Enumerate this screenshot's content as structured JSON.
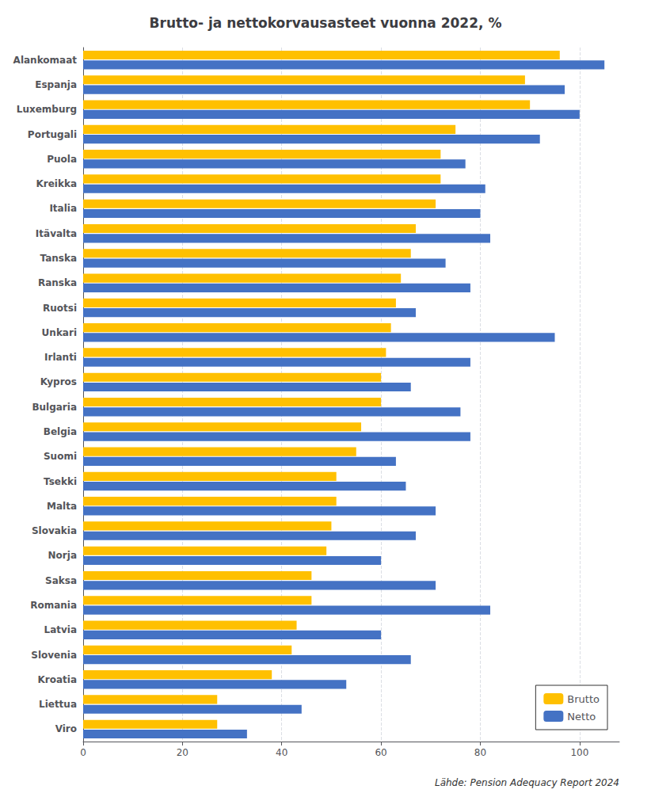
{
  "chart_data": {
    "type": "bar",
    "orientation": "horizontal",
    "title": "Brutto- ja nettokorvausasteet vuonna 2022, %",
    "categories": [
      "Alankomaat",
      "Espanja",
      "Luxemburg",
      "Portugali",
      "Puola",
      "Kreikka",
      "Italia",
      "Itävalta",
      "Tanska",
      "Ranska",
      "Ruotsi",
      "Unkari",
      "Irlanti",
      "Kypros",
      "Bulgaria",
      "Belgia",
      "Suomi",
      "Tsekki",
      "Malta",
      "Slovakia",
      "Norja",
      "Saksa",
      "Romania",
      "Latvia",
      "Slovenia",
      "Kroatia",
      "Liettua",
      "Viro"
    ],
    "series": [
      {
        "name": "Brutto",
        "color": "#FFC000",
        "values": [
          96,
          89,
          90,
          75,
          72,
          72,
          71,
          67,
          66,
          64,
          63,
          62,
          61,
          60,
          60,
          56,
          55,
          51,
          51,
          50,
          49,
          46,
          46,
          43,
          42,
          38,
          27,
          27
        ]
      },
      {
        "name": "Netto",
        "color": "#4472C4",
        "values": [
          105,
          97,
          100,
          92,
          77,
          81,
          80,
          82,
          73,
          78,
          67,
          95,
          78,
          66,
          76,
          78,
          63,
          65,
          71,
          67,
          60,
          71,
          82,
          60,
          66,
          53,
          44,
          33
        ]
      }
    ],
    "xlim": [
      0,
      108
    ],
    "xticks": [
      0,
      20,
      40,
      60,
      80,
      100
    ],
    "grid": true,
    "legend": "lower right",
    "annotations": [
      "Lähde: Pension Adequacy Report 2024"
    ]
  }
}
